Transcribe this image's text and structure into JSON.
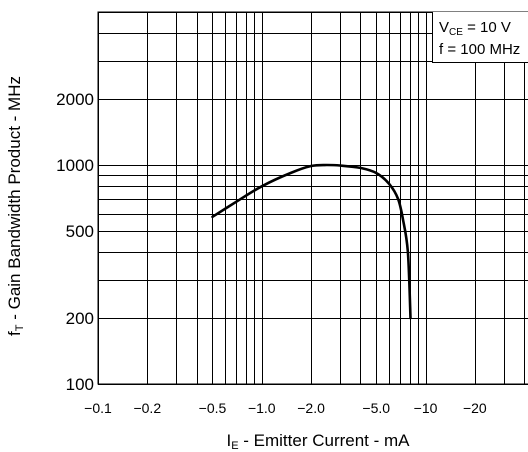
{
  "chart_data": {
    "type": "line",
    "xscale": "log",
    "yscale": "log",
    "xlim": [
      -0.1,
      -50
    ],
    "ylim": [
      100,
      5000
    ],
    "x_ticks": [
      {
        "value": -0.1,
        "label": "−0.1"
      },
      {
        "value": -0.2,
        "label": "−0.2"
      },
      {
        "value": -0.5,
        "label": "−0.5"
      },
      {
        "value": -1.0,
        "label": "−1.0"
      },
      {
        "value": -2.0,
        "label": "−2.0"
      },
      {
        "value": -5.0,
        "label": "−5.0"
      },
      {
        "value": -10,
        "label": "−10"
      },
      {
        "value": -20,
        "label": "−20"
      }
    ],
    "y_ticks": [
      {
        "value": 100,
        "label": "100"
      },
      {
        "value": 200,
        "label": "200"
      },
      {
        "value": 500,
        "label": "500"
      },
      {
        "value": 1000,
        "label": "1000"
      },
      {
        "value": 2000,
        "label": "2000"
      }
    ],
    "xlabel": {
      "symbol": "I",
      "subscript": "E",
      "text": " -  Emitter Current  - mA"
    },
    "ylabel": {
      "symbol": "f",
      "subscript": "T",
      "text": " -  Gain Bandwidth Product  - MHz"
    },
    "conditions": [
      {
        "symbol": "V",
        "subscript": "CE",
        "text": " = 10 V"
      },
      {
        "symbol": "f",
        "subscript": "",
        "text": " = 100 MHz"
      }
    ],
    "grid": true,
    "series": [
      {
        "x": [
          -0.5,
          -0.7,
          -1.0,
          -1.5,
          -2.0,
          -2.5,
          -3.0,
          -4.0,
          -5.0,
          -6.0,
          -6.8,
          -7.3,
          -7.8,
          -8.1
        ],
        "y": [
          580,
          680,
          800,
          920,
          990,
          1000,
          995,
          970,
          920,
          820,
          700,
          560,
          400,
          200
        ]
      }
    ]
  },
  "colors": {
    "ink": "#000000",
    "background": "#ffffff"
  }
}
